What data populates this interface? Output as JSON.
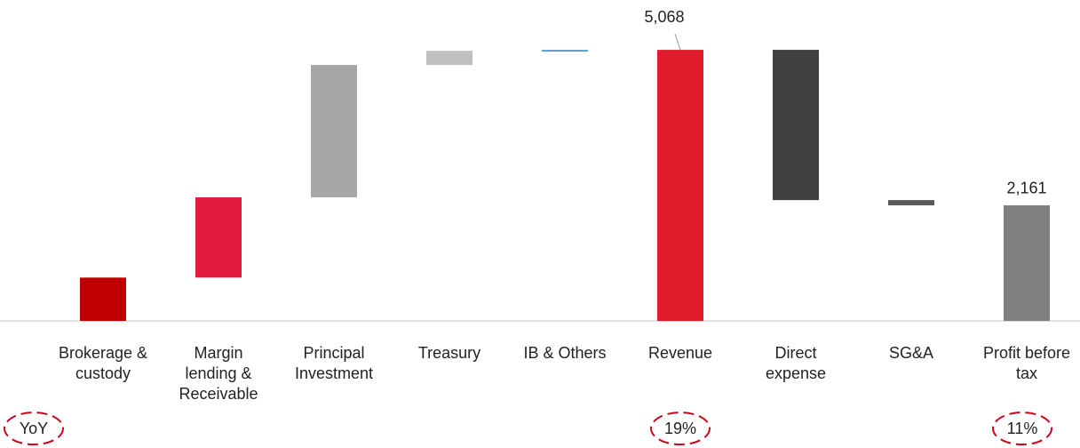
{
  "chart_data": {
    "type": "waterfall",
    "categories": [
      "Brokerage &\ncustody",
      "Margin\nlending &\nReceivable",
      "Principal\nInvestment",
      "Treasury",
      "IB & Others",
      "Revenue",
      "Direct\nexpense",
      "SG&A",
      "Profit before\ntax"
    ],
    "values": [
      810,
      1500,
      2475,
      265,
      18,
      5068,
      -2809,
      -98,
      2161
    ],
    "totals": [
      false,
      false,
      false,
      false,
      false,
      true,
      false,
      false,
      true
    ],
    "value_labels": [
      null,
      null,
      null,
      null,
      null,
      "5,068",
      null,
      null,
      "2,161"
    ],
    "colors": [
      "#c00000",
      "#e31b3c",
      "#a6a6a6",
      "#bfbfbf",
      "#5b9bd5",
      "#e01b2a",
      "#404040",
      "#595959",
      "#808080"
    ],
    "ylim": [
      0,
      5500
    ],
    "annotations": [
      "YoY",
      "19%",
      "11%"
    ]
  }
}
